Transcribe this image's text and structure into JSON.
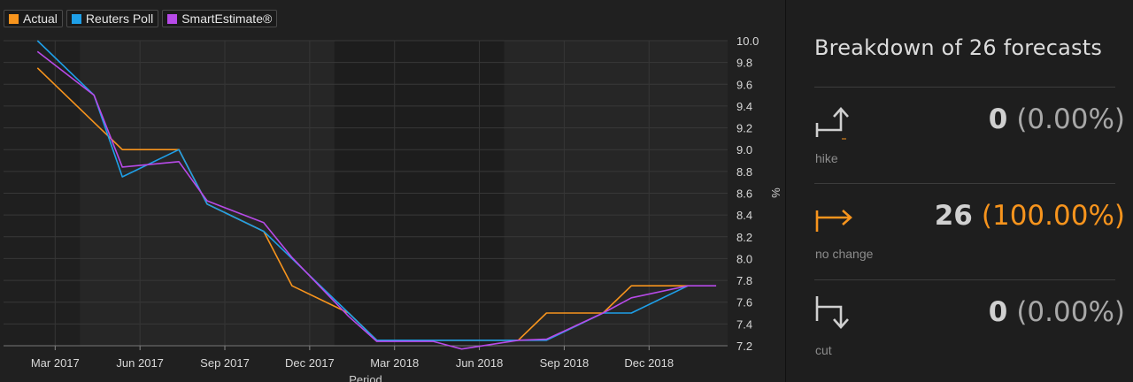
{
  "legend": [
    {
      "label": "Actual",
      "color": "#f7941d"
    },
    {
      "label": "Reuters Poll",
      "color": "#1e9fe8"
    },
    {
      "label": "SmartEstimate®",
      "color": "#b74ae8"
    }
  ],
  "chart_data": {
    "type": "line",
    "x": [
      "2017-02",
      "2017-04",
      "2017-05",
      "2017-07",
      "2017-08",
      "2017-10",
      "2017-11",
      "2018-01",
      "2018-02",
      "2018-04",
      "2018-05",
      "2018-07",
      "2018-08",
      "2018-10",
      "2018-11",
      "2019-01",
      "2019-02"
    ],
    "x_tick_labels": [
      "Mar 2017",
      "Jun 2017",
      "Sep 2017",
      "Dec 2017",
      "Mar 2018",
      "Jun 2018",
      "Sep 2018",
      "Dec 2018"
    ],
    "xlabel": "Period",
    "ylabel": "%",
    "ylim": [
      7.2,
      10.0
    ],
    "y_ticks": [
      "7.2",
      "7.4",
      "7.6",
      "7.8",
      "8.0",
      "8.2",
      "8.4",
      "8.6",
      "8.8",
      "9.0",
      "9.2",
      "9.4",
      "9.6",
      "9.8",
      "10.0"
    ],
    "grid": true,
    "y_axis_side": "right",
    "legend_position": "top-left",
    "series": [
      {
        "name": "Actual",
        "color": "#f7941d",
        "values": [
          9.75,
          9.25,
          9.0,
          9.0,
          8.5,
          8.25,
          7.75,
          7.5,
          7.25,
          7.25,
          7.25,
          7.25,
          7.5,
          7.5,
          7.75,
          7.75,
          null
        ]
      },
      {
        "name": "Reuters Poll",
        "color": "#1e9fe8",
        "values": [
          10.0,
          9.5,
          8.75,
          9.0,
          8.5,
          8.25,
          8.0,
          7.5,
          7.25,
          7.25,
          7.25,
          7.25,
          7.25,
          7.5,
          7.5,
          7.75,
          null
        ]
      },
      {
        "name": "SmartEstimate®",
        "color": "#b74ae8",
        "values": [
          9.9,
          9.5,
          8.84,
          8.89,
          8.53,
          8.33,
          8.01,
          7.47,
          7.24,
          7.24,
          7.17,
          7.25,
          7.26,
          7.5,
          7.64,
          7.75,
          7.75
        ]
      }
    ]
  },
  "breakdown": {
    "title": "Breakdown of 26 forecasts",
    "rows": [
      {
        "label": "hike",
        "count": "0",
        "pct": "(0.00%)",
        "color": "#d0d0d0",
        "icon": "hike-arrow-icon"
      },
      {
        "label": "no change",
        "count": "26",
        "pct": "(100.00%)",
        "color": "#f7941d",
        "icon": "no-change-arrow-icon"
      },
      {
        "label": "cut",
        "count": "0",
        "pct": "(0.00%)",
        "color": "#d0d0d0",
        "icon": "cut-arrow-icon"
      }
    ]
  }
}
